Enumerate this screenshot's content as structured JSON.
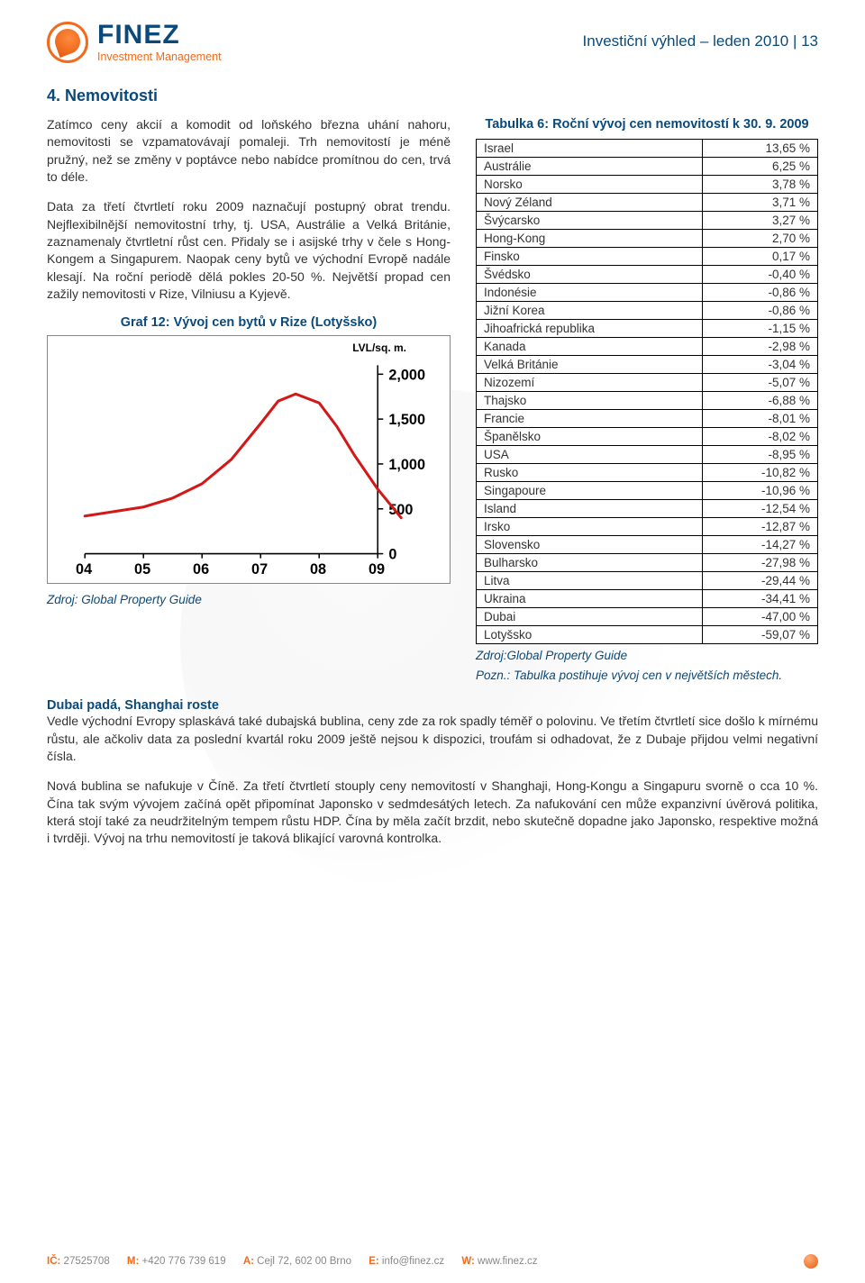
{
  "header": {
    "logo_word": "FINEZ",
    "logo_tagline": "Investment Management",
    "doc_title": "Investiční výhled – leden 2010 | 13"
  },
  "section_heading": "4. Nemovitosti",
  "left": {
    "p1": "Zatímco ceny akcií a komodit od loňského března uhání nahoru, nemovitosti se vzpamatovávají pomaleji. Trh nemovitostí je méně pružný, než se změny v poptávce nebo nabídce promítnou do cen, trvá to déle.",
    "p2": "Data za třetí čtvrtletí roku 2009 naznačují postupný obrat trendu. Nejflexibilnější nemovitostní trhy, tj. USA, Austrálie a Velká Británie, zaznamenaly čtvrtletní růst cen. Přidaly se i asijské trhy v čele s Hong-Kongem a Singapurem. Naopak ceny bytů ve východní Evropě nadále klesají. Na roční periodě dělá pokles 20-50 %. Největší propad cen zažily nemovitosti v Rize, Vilniusu a Kyjevě.",
    "chart_title": "Graf 12: Vývoj cen bytů v Rize (Lotyšsko)",
    "chart_source": "Zdroj: Global Property Guide"
  },
  "chart": {
    "type": "line",
    "unit_label": "LVL/sq. m.",
    "x_labels": [
      "04",
      "05",
      "06",
      "07",
      "08",
      "09"
    ],
    "y_ticks": [
      0,
      500,
      1000,
      1500,
      2000
    ],
    "ylim": [
      0,
      2100
    ],
    "tick_fontsize": 16,
    "tick_fontweight": 700,
    "tick_color": "#000000",
    "line_color": "#d31818",
    "line_width": 3,
    "axis_color": "#000000",
    "grid_color": "#cfcfcf",
    "background_color": "#ffffff",
    "x": [
      0,
      0.5,
      1,
      1.5,
      2,
      2.5,
      3,
      3.3,
      3.6,
      4,
      4.3,
      4.6,
      5,
      5.4
    ],
    "y": [
      420,
      470,
      520,
      620,
      780,
      1050,
      1450,
      1700,
      1780,
      1680,
      1420,
      1100,
      720,
      400
    ]
  },
  "table": {
    "title": "Tabulka 6: Roční vývoj cen nemovitostí k 30. 9. 2009",
    "rows": [
      [
        "Israel",
        "13,65 %"
      ],
      [
        "Austrálie",
        "6,25 %"
      ],
      [
        "Norsko",
        "3,78 %"
      ],
      [
        "Nový Zéland",
        "3,71 %"
      ],
      [
        "Švýcarsko",
        "3,27 %"
      ],
      [
        "Hong-Kong",
        "2,70 %"
      ],
      [
        "Finsko",
        "0,17 %"
      ],
      [
        "Švédsko",
        "-0,40 %"
      ],
      [
        "Indonésie",
        "-0,86 %"
      ],
      [
        "Jižní Korea",
        "-0,86 %"
      ],
      [
        "Jihoafrická republika",
        "-1,15 %"
      ],
      [
        "Kanada",
        "-2,98 %"
      ],
      [
        "Velká Británie",
        "-3,04 %"
      ],
      [
        "Nizozemí",
        "-5,07 %"
      ],
      [
        "Thajsko",
        "-6,88 %"
      ],
      [
        "Francie",
        "-8,01 %"
      ],
      [
        "Španělsko",
        "-8,02 %"
      ],
      [
        "USA",
        "-8,95 %"
      ],
      [
        "Rusko",
        "-10,82 %"
      ],
      [
        "Singapoure",
        "-10,96 %"
      ],
      [
        "Island",
        "-12,54 %"
      ],
      [
        "Irsko",
        "-12,87 %"
      ],
      [
        "Slovensko",
        "-14,27 %"
      ],
      [
        "Bulharsko",
        "-27,98 %"
      ],
      [
        "Litva",
        "-29,44 %"
      ],
      [
        "Ukraina",
        "-34,41 %"
      ],
      [
        "Dubai",
        "-47,00 %"
      ],
      [
        "Lotyšsko",
        "-59,07 %"
      ]
    ],
    "source1": "Zdroj:Global Property Guide",
    "source2": "Pozn.: Tabulka postihuje vývoj cen v největších městech."
  },
  "lower": {
    "sub1": "Dubai padá, Shanghai roste",
    "p3": "Vedle východní Evropy splaskává také dubajská bublina, ceny zde za rok spadly téměř o polovinu. Ve třetím čtvrtletí sice došlo k mírnému růstu, ale ačkoliv data za poslední kvartál roku 2009 ještě nejsou k dispozici, troufám si odhadovat, že z Dubaje přijdou velmi negativní čísla.",
    "p4": "Nová bublina se nafukuje v Číně. Za třetí čtvrtletí stouply ceny nemovitostí v Shanghaji, Hong-Kongu a Singapuru svorně o cca 10 %. Čína tak svým vývojem začíná opět připomínat Japonsko v sedmdesátých letech. Za nafukování cen může expanzivní úvěrová politika, která stojí také za neudržitelným tempem růstu HDP. Čína by měla začít brzdit, nebo skutečně dopadne jako Japonsko, respektive možná i tvrději. Vývoj na trhu nemovitostí je taková blikající varovná kontrolka."
  },
  "footer": {
    "ic_label": "IČ:",
    "ic_value": "27525708",
    "m_label": "M:",
    "m_value": "+420 776 739 619",
    "a_label": "A:",
    "a_value": "Cejl 72, 602 00 Brno",
    "e_label": "E:",
    "e_value": "info@finez.cz",
    "w_label": "W:",
    "w_value": "www.finez.cz"
  }
}
